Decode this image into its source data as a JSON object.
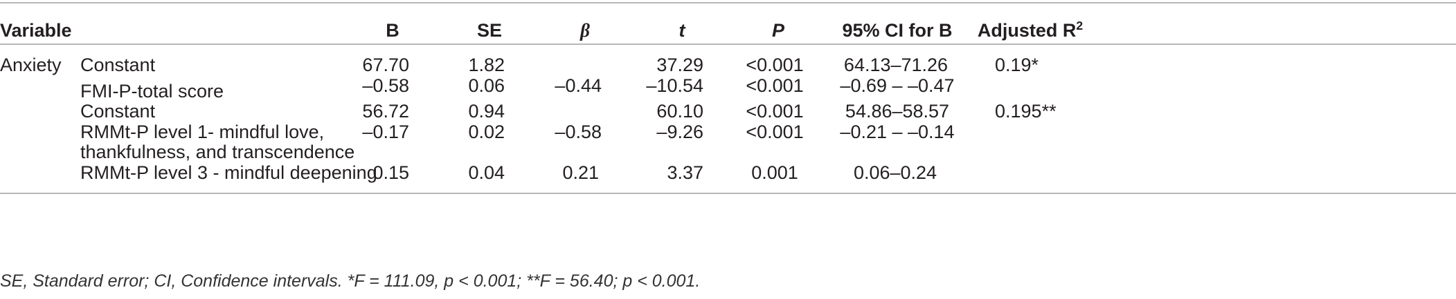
{
  "header": {
    "variable": "Variable",
    "b": "B",
    "se": "SE",
    "beta": "β",
    "t": "t",
    "p": "P",
    "ci": "95% CI for B",
    "adj_r2": "Adjusted R",
    "adj_r2_sup": "2"
  },
  "group": "Anxiety",
  "rows": [
    {
      "label": "Constant",
      "b": "67.70",
      "se": "1.82",
      "beta": "",
      "t": "37.29",
      "p": "<0.001",
      "ci": "64.13–71.26",
      "r2": "0.19*"
    },
    {
      "label": "FMI-P-total score",
      "b": "–0.58",
      "se": "0.06",
      "beta": "–0.44",
      "t": "–10.54",
      "p": "<0.001",
      "ci": "–0.69 – –0.47",
      "r2": ""
    },
    {
      "label": "Constant",
      "b": "56.72",
      "se": "0.94",
      "beta": "",
      "t": "60.10",
      "p": "<0.001",
      "ci": "54.86–58.57",
      "r2": "0.195**"
    },
    {
      "label": "RMMt-P level 1- mindful love,",
      "label2": "thankfulness, and transcendence",
      "b": "–0.17",
      "se": "0.02",
      "beta": "–0.58",
      "t": "–9.26",
      "p": "<0.001",
      "ci": "–0.21 – –0.14",
      "r2": ""
    },
    {
      "label": "RMMt-P level 3 - mindful deepening",
      "b": "0.15",
      "se": "0.04",
      "beta": "0.21",
      "t": "3.37",
      "p": "0.001",
      "ci": "0.06–0.24",
      "r2": ""
    }
  ],
  "footnote": "SE, Standard error; CI, Confidence intervals. *F = 111.09, p < 0.001; **F = 56.40; p < 0.001."
}
